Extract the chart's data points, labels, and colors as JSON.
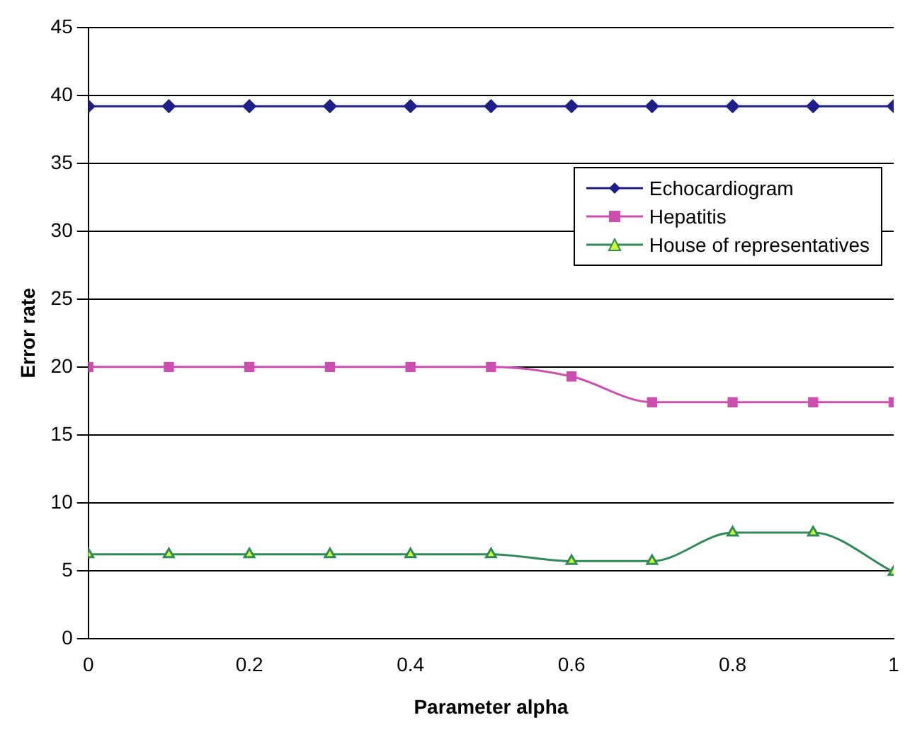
{
  "chart_data": {
    "type": "line",
    "xlabel": "Parameter alpha",
    "ylabel": "Error rate",
    "x": [
      0,
      0.1,
      0.2,
      0.3,
      0.4,
      0.5,
      0.6,
      0.7,
      0.8,
      0.9,
      1
    ],
    "series": [
      {
        "name": "Echocardiogram",
        "color": "#1f1f8c",
        "marker": "diamond",
        "values": [
          39.2,
          39.2,
          39.2,
          39.2,
          39.2,
          39.2,
          39.2,
          39.2,
          39.2,
          39.2,
          39.2
        ]
      },
      {
        "name": "Hepatitis",
        "color": "#cc4fb0",
        "marker": "square",
        "values": [
          20,
          20,
          20,
          20,
          20,
          20,
          19.3,
          17.4,
          17.4,
          17.4,
          17.4
        ]
      },
      {
        "name": "House of representatives",
        "color": "#2e8b57",
        "marker": "triangle",
        "values": [
          6.2,
          6.2,
          6.2,
          6.2,
          6.2,
          6.2,
          5.7,
          5.7,
          7.8,
          7.8,
          4.9
        ]
      }
    ],
    "xlim": [
      0,
      1
    ],
    "xticks": [
      0,
      0.2,
      0.4,
      0.6,
      0.8,
      1
    ],
    "ylim": [
      0,
      45
    ],
    "yticks": [
      0,
      5,
      10,
      15,
      20,
      25,
      30,
      35,
      40,
      45
    ],
    "grid": "y",
    "legend": "top right",
    "line_style": "solid"
  }
}
